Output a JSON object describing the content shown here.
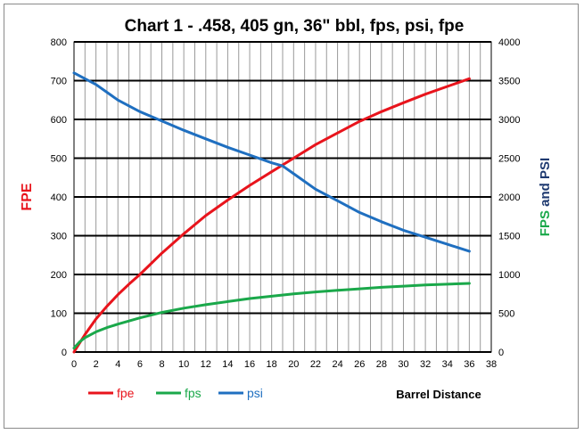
{
  "chart_data": {
    "type": "line",
    "title": "Chart 1 -  .458, 405 gn, 36\" bbl, fps, psi, fpe",
    "xlabel": "Barrel Distance",
    "ylabel": "FPE",
    "y2label_part1": "FPS",
    "y2label_part2": " and ",
    "y2label_part3": "PSI",
    "xlim": [
      0,
      38
    ],
    "ylim": [
      0,
      800
    ],
    "y2lim": [
      0,
      4000
    ],
    "x_ticks": [
      "0",
      "2",
      "4",
      "6",
      "8",
      "10",
      "12",
      "14",
      "16",
      "18",
      "20",
      "22",
      "24",
      "26",
      "28",
      "30",
      "32",
      "34",
      "36",
      "38"
    ],
    "y_ticks": [
      "0",
      "100",
      "200",
      "300",
      "400",
      "500",
      "600",
      "700",
      "800"
    ],
    "y2_ticks": [
      "0",
      "500",
      "1000",
      "1500",
      "2000",
      "2500",
      "3000",
      "3500",
      "4000"
    ],
    "grid": "horizontal major lines, vertical minor lines",
    "legend": "bottom-left",
    "colors": {
      "fpe": "#e8141c",
      "fps": "#1aa84a",
      "psi": "#1f6fc0",
      "y2label_accent": "#1aa84a"
    },
    "series": [
      {
        "name": "fpe",
        "axis": "left",
        "x": [
          0,
          1,
          2,
          3,
          4,
          5,
          6,
          8,
          10,
          12,
          14,
          16,
          18,
          20,
          22,
          24,
          26,
          28,
          30,
          32,
          34,
          36
        ],
        "y": [
          0,
          45,
          85,
          118,
          148,
          175,
          200,
          255,
          305,
          352,
          392,
          430,
          465,
          500,
          535,
          565,
          595,
          620,
          643,
          665,
          685,
          705
        ]
      },
      {
        "name": "fps",
        "axis": "right",
        "x": [
          0,
          0.5,
          1,
          2,
          3,
          4,
          5,
          6,
          8,
          10,
          12,
          14,
          16,
          18,
          20,
          22,
          24,
          26,
          28,
          30,
          32,
          34,
          36
        ],
        "y": [
          50,
          130,
          185,
          260,
          315,
          360,
          400,
          440,
          510,
          565,
          610,
          650,
          690,
          720,
          750,
          775,
          795,
          815,
          835,
          850,
          865,
          875,
          885
        ]
      },
      {
        "name": "psi",
        "axis": "right",
        "x": [
          0,
          2,
          4,
          6,
          8,
          10,
          12,
          14,
          16,
          18,
          19,
          20,
          22,
          24,
          26,
          28,
          30,
          32,
          34,
          36
        ],
        "y": [
          3600,
          3450,
          3250,
          3100,
          2980,
          2860,
          2750,
          2640,
          2540,
          2440,
          2400,
          2300,
          2100,
          1950,
          1800,
          1680,
          1570,
          1480,
          1390,
          1300
        ]
      }
    ]
  }
}
